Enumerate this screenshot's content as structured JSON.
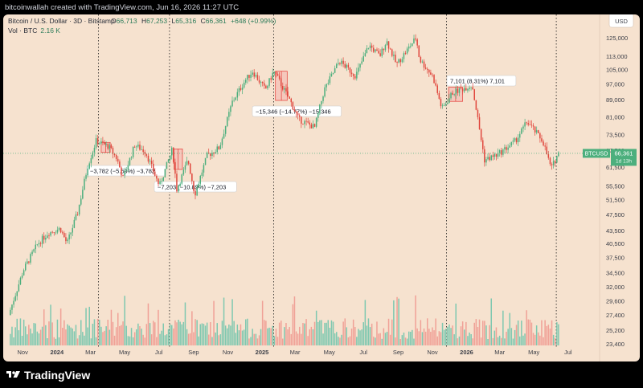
{
  "header": {
    "created_by": "bitcoinwallah created with TradingView.com, Jun 16, 2026 11:27 UTC"
  },
  "legend": {
    "pair": "Bitcoin / U.S. Dollar · 3D · Bitstamp",
    "open_prefix": "O",
    "open": "66,713",
    "high_prefix": "H",
    "high": "67,253",
    "low_prefix": "L",
    "low": "65,316",
    "close_prefix": "C",
    "close": "66,361",
    "change": "+648 (+0.99%)",
    "volume_label": "Vol · BTC",
    "volume_value": "2.16 K"
  },
  "price_axis": {
    "currency": "USD",
    "ticks": [
      "125,000",
      "113,000",
      "105,000",
      "97,000",
      "89,000",
      "81,000",
      "73,500",
      "67,500",
      "61,500",
      "55,500",
      "51,500",
      "47,500",
      "43,500",
      "40,500",
      "37,500",
      "34,500",
      "32,000",
      "29,600",
      "27,400",
      "25,200",
      "23,400"
    ]
  },
  "price_label": {
    "symbol": "BTCUSD",
    "value": "66,361",
    "countdown": "1d 13h"
  },
  "time_axis": [
    "Nov",
    "2024",
    "Mar",
    "May",
    "Jul",
    "Sep",
    "Nov",
    "2025",
    "Mar",
    "May",
    "Jul",
    "Sep",
    "Nov",
    "2026",
    "Mar",
    "May",
    "Jul"
  ],
  "annotations": [
    {
      "text": "−3,782 (−5.59%) −3,782"
    },
    {
      "text": "−7,203 (−10.89%) −7,203"
    },
    {
      "text": "−15,346 (−14.77%) −15,346"
    },
    {
      "text": "7,101 (8.31%) 7,101"
    }
  ],
  "colors": {
    "up": "#4caf7d",
    "down": "#e0473d",
    "up_vol": "#7fc8b0",
    "down_vol": "#f0a197",
    "background": "#f6e2cf",
    "range_fill": "#f4a9a4",
    "range_line": "#e53935"
  },
  "footer": {
    "brand": "TradingView"
  },
  "chart_data": {
    "type": "candlestick",
    "title": "Bitcoin / U.S. Dollar · 3D · Bitstamp",
    "x_range": [
      "2023-10-03",
      "2026-07-20"
    ],
    "ylim": [
      23400,
      130000
    ],
    "y_scale": "log",
    "series": [
      {
        "name": "BTCUSD",
        "points": [
          [
            "2023-10-10",
            27400
          ],
          [
            "2023-11-05",
            35000
          ],
          [
            "2023-12-01",
            40500
          ],
          [
            "2023-12-20",
            43000
          ],
          [
            "2024-01-10",
            44000
          ],
          [
            "2024-01-22",
            40500
          ],
          [
            "2024-02-10",
            48000
          ],
          [
            "2024-02-28",
            62000
          ],
          [
            "2024-03-14",
            71000
          ],
          [
            "2024-04-05",
            69000
          ],
          [
            "2024-04-20",
            64500
          ],
          [
            "2024-05-01",
            58000
          ],
          [
            "2024-05-22",
            69500
          ],
          [
            "2024-06-10",
            67000
          ],
          [
            "2024-07-05",
            55500
          ],
          [
            "2024-07-28",
            68000
          ],
          [
            "2024-08-05",
            54500
          ],
          [
            "2024-08-25",
            64000
          ],
          [
            "2024-09-06",
            53000
          ],
          [
            "2024-09-28",
            65500
          ],
          [
            "2024-10-20",
            68500
          ],
          [
            "2024-11-12",
            88000
          ],
          [
            "2024-12-05",
            99000
          ],
          [
            "2024-12-18",
            104000
          ],
          [
            "2025-01-10",
            94000
          ],
          [
            "2025-01-25",
            104000
          ],
          [
            "2025-02-05",
            98000
          ],
          [
            "2025-02-24",
            88000
          ],
          [
            "2025-03-10",
            80000
          ],
          [
            "2025-04-08",
            76500
          ],
          [
            "2025-04-25",
            94000
          ],
          [
            "2025-05-22",
            110000
          ],
          [
            "2025-06-20",
            101500
          ],
          [
            "2025-07-14",
            120000
          ],
          [
            "2025-08-02",
            113000
          ],
          [
            "2025-08-14",
            123000
          ],
          [
            "2025-09-01",
            108000
          ],
          [
            "2025-10-06",
            125000
          ],
          [
            "2025-10-12",
            111000
          ],
          [
            "2025-11-05",
            101000
          ],
          [
            "2025-11-21",
            84500
          ],
          [
            "2025-12-10",
            92500
          ],
          [
            "2026-01-14",
            96500
          ],
          [
            "2026-02-05",
            64000
          ],
          [
            "2026-03-01",
            66000
          ],
          [
            "2026-04-01",
            71000
          ],
          [
            "2026-04-22",
            79000
          ],
          [
            "2026-05-20",
            71000
          ],
          [
            "2026-06-04",
            61000
          ],
          [
            "2026-06-16",
            66361
          ]
        ]
      }
    ],
    "measure_ranges": [
      {
        "start": "2024-03-20",
        "end": "2024-04-05",
        "change": -3782,
        "change_pct": -5.59
      },
      {
        "start": "2024-07-28",
        "end": "2024-08-12",
        "change": -7203,
        "change_pct": -10.89
      },
      {
        "start": "2025-01-25",
        "end": "2025-02-15",
        "change": -15346,
        "change_pct": -14.77
      },
      {
        "start": "2025-11-30",
        "end": "2025-12-25",
        "change": 7101,
        "change_pct": 8.31
      }
    ],
    "vertical_markers": [
      "2024-03-15",
      "2024-07-20",
      "2025-01-22",
      "2025-11-26",
      "2026-06-10"
    ],
    "last_price": 66361,
    "grid": false
  }
}
